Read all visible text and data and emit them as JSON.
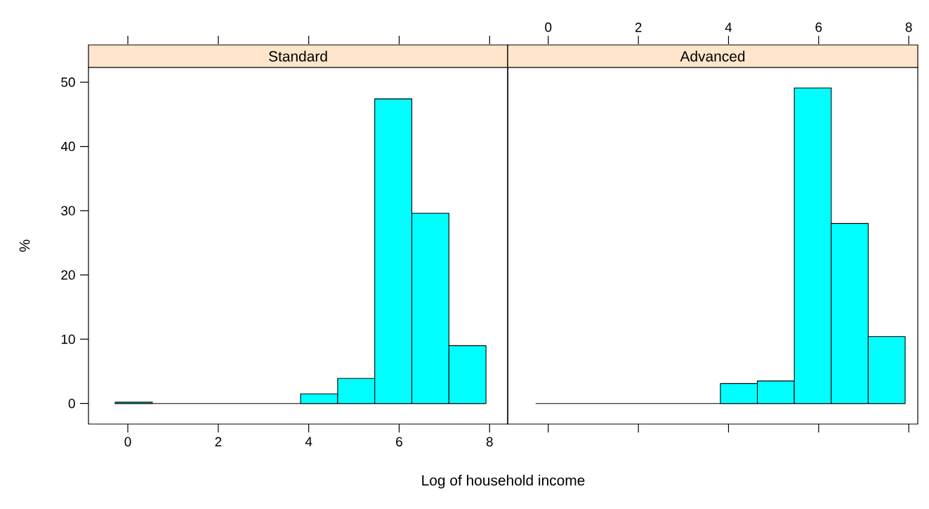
{
  "chart_data": [
    {
      "type": "histogram",
      "title": "Standard",
      "xlabel": "Log of household income",
      "ylabel": "%",
      "bins": [
        -0.28,
        0.54,
        1.36,
        2.18,
        3.0,
        3.82,
        4.64,
        5.46,
        6.28,
        7.1,
        7.92
      ],
      "values": [
        0.2,
        0,
        0,
        0,
        0,
        1.5,
        3.9,
        47.4,
        29.6,
        9.0
      ],
      "color": "#00ffff",
      "xlim": [
        -0.87,
        8.4
      ],
      "xticks": [
        0,
        2,
        4,
        6,
        8
      ],
      "ylim": [
        -3.2,
        52.3
      ],
      "yticks": [
        0,
        10,
        20,
        30,
        40,
        50
      ]
    },
    {
      "type": "histogram",
      "title": "Advanced",
      "bins": [
        -0.28,
        0.54,
        1.36,
        2.18,
        3.0,
        3.82,
        4.64,
        5.46,
        6.28,
        7.1,
        7.92
      ],
      "values": [
        0,
        0,
        0,
        0,
        0,
        3.1,
        3.5,
        49.1,
        28.0,
        10.4
      ],
      "color": "#00ffff",
      "xlim": [
        -0.9,
        8.2
      ],
      "xticks": [
        0,
        2,
        4,
        6,
        8
      ],
      "ylim": [
        -3.2,
        52.3
      ],
      "tick_labels": "x"
    }
  ]
}
